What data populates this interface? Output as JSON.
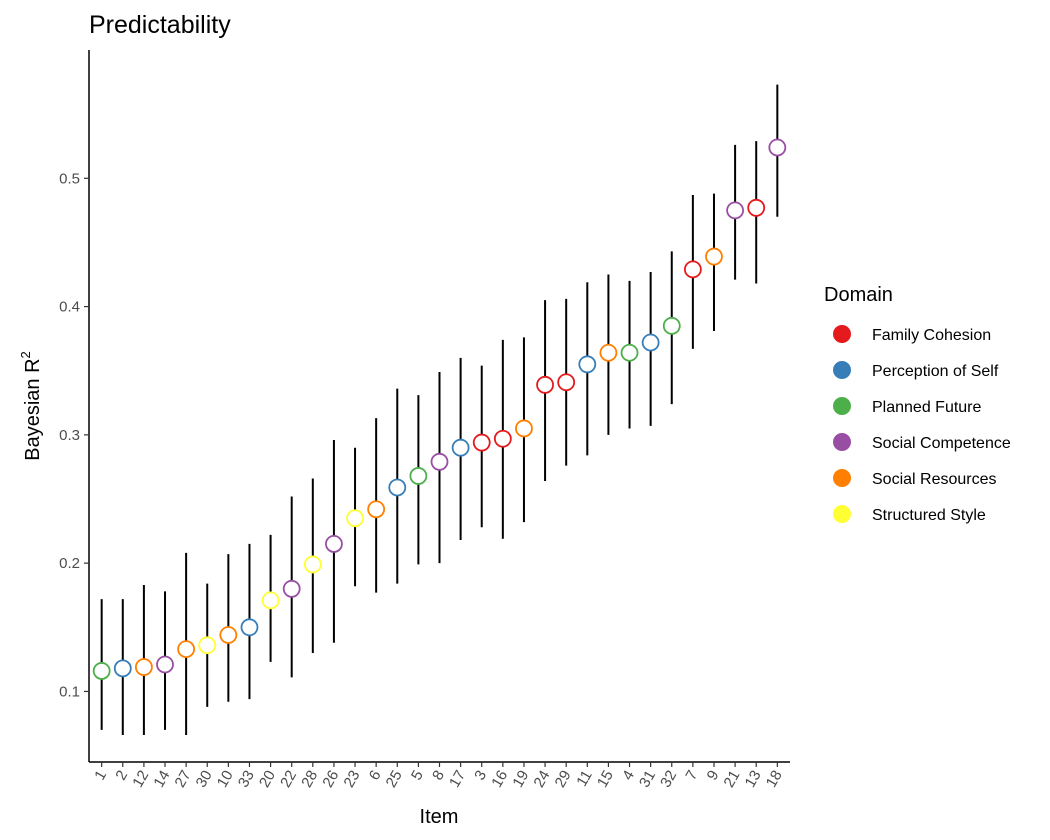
{
  "chart_data": {
    "type": "scatter",
    "title": "Predictability",
    "xlabel": "Item",
    "ylabel_main": "Bayesian R",
    "ylabel_sup": "2",
    "ylim": [
      0.045,
      0.6
    ],
    "yticks": [
      0.1,
      0.2,
      0.3,
      0.4,
      0.5
    ],
    "ytick_labels": [
      "0.1",
      "0.2",
      "0.3",
      "0.4",
      "0.5"
    ],
    "grid": false,
    "legend": {
      "title": "Domain",
      "position": "right",
      "entries": [
        {
          "name": "Family Cohesion",
          "color": "#E41A1C"
        },
        {
          "name": "Perception of Self",
          "color": "#377EB8"
        },
        {
          "name": "Planned Future",
          "color": "#4DAF4A"
        },
        {
          "name": "Social Competence",
          "color": "#984EA3"
        },
        {
          "name": "Social Resources",
          "color": "#FF7F00"
        },
        {
          "name": "Structured Style",
          "color": "#FFFF33"
        }
      ]
    },
    "points": [
      {
        "item": "1",
        "domain": "Planned Future",
        "r2": 0.116,
        "lower": 0.07,
        "upper": 0.172
      },
      {
        "item": "2",
        "domain": "Perception of Self",
        "r2": 0.118,
        "lower": 0.066,
        "upper": 0.172
      },
      {
        "item": "12",
        "domain": "Social Resources",
        "r2": 0.119,
        "lower": 0.066,
        "upper": 0.183
      },
      {
        "item": "14",
        "domain": "Social Competence",
        "r2": 0.121,
        "lower": 0.07,
        "upper": 0.178
      },
      {
        "item": "27",
        "domain": "Social Resources",
        "r2": 0.133,
        "lower": 0.066,
        "upper": 0.208
      },
      {
        "item": "30",
        "domain": "Structured Style",
        "r2": 0.136,
        "lower": 0.088,
        "upper": 0.184
      },
      {
        "item": "10",
        "domain": "Social Resources",
        "r2": 0.144,
        "lower": 0.092,
        "upper": 0.207
      },
      {
        "item": "33",
        "domain": "Perception of Self",
        "r2": 0.15,
        "lower": 0.094,
        "upper": 0.215
      },
      {
        "item": "20",
        "domain": "Structured Style",
        "r2": 0.171,
        "lower": 0.123,
        "upper": 0.222
      },
      {
        "item": "22",
        "domain": "Social Competence",
        "r2": 0.18,
        "lower": 0.111,
        "upper": 0.252
      },
      {
        "item": "28",
        "domain": "Structured Style",
        "r2": 0.199,
        "lower": 0.13,
        "upper": 0.266
      },
      {
        "item": "26",
        "domain": "Social Competence",
        "r2": 0.215,
        "lower": 0.138,
        "upper": 0.296
      },
      {
        "item": "23",
        "domain": "Structured Style",
        "r2": 0.235,
        "lower": 0.182,
        "upper": 0.29
      },
      {
        "item": "6",
        "domain": "Social Resources",
        "r2": 0.242,
        "lower": 0.177,
        "upper": 0.313
      },
      {
        "item": "25",
        "domain": "Perception of Self",
        "r2": 0.259,
        "lower": 0.184,
        "upper": 0.336
      },
      {
        "item": "5",
        "domain": "Planned Future",
        "r2": 0.268,
        "lower": 0.199,
        "upper": 0.331
      },
      {
        "item": "8",
        "domain": "Social Competence",
        "r2": 0.279,
        "lower": 0.2,
        "upper": 0.349
      },
      {
        "item": "17",
        "domain": "Perception of Self",
        "r2": 0.29,
        "lower": 0.218,
        "upper": 0.36
      },
      {
        "item": "3",
        "domain": "Family Cohesion",
        "r2": 0.294,
        "lower": 0.228,
        "upper": 0.354
      },
      {
        "item": "16",
        "domain": "Family Cohesion",
        "r2": 0.297,
        "lower": 0.219,
        "upper": 0.374
      },
      {
        "item": "19",
        "domain": "Social Resources",
        "r2": 0.305,
        "lower": 0.232,
        "upper": 0.376
      },
      {
        "item": "24",
        "domain": "Family Cohesion",
        "r2": 0.339,
        "lower": 0.264,
        "upper": 0.405
      },
      {
        "item": "29",
        "domain": "Family Cohesion",
        "r2": 0.341,
        "lower": 0.276,
        "upper": 0.406
      },
      {
        "item": "11",
        "domain": "Perception of Self",
        "r2": 0.355,
        "lower": 0.284,
        "upper": 0.419
      },
      {
        "item": "15",
        "domain": "Social Resources",
        "r2": 0.364,
        "lower": 0.3,
        "upper": 0.425
      },
      {
        "item": "4",
        "domain": "Planned Future",
        "r2": 0.364,
        "lower": 0.305,
        "upper": 0.42
      },
      {
        "item": "31",
        "domain": "Perception of Self",
        "r2": 0.372,
        "lower": 0.307,
        "upper": 0.427
      },
      {
        "item": "32",
        "domain": "Planned Future",
        "r2": 0.385,
        "lower": 0.324,
        "upper": 0.443
      },
      {
        "item": "7",
        "domain": "Family Cohesion",
        "r2": 0.429,
        "lower": 0.367,
        "upper": 0.487
      },
      {
        "item": "9",
        "domain": "Social Resources",
        "r2": 0.439,
        "lower": 0.381,
        "upper": 0.488
      },
      {
        "item": "21",
        "domain": "Social Competence",
        "r2": 0.475,
        "lower": 0.421,
        "upper": 0.526
      },
      {
        "item": "13",
        "domain": "Family Cohesion",
        "r2": 0.477,
        "lower": 0.418,
        "upper": 0.529
      },
      {
        "item": "18",
        "domain": "Social Competence",
        "r2": 0.524,
        "lower": 0.47,
        "upper": 0.573
      }
    ]
  }
}
